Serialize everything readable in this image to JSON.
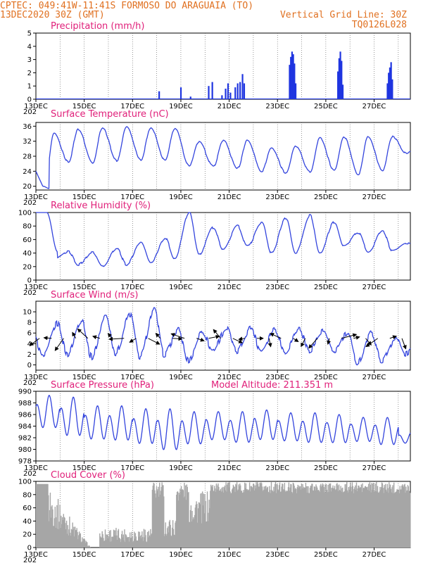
{
  "header": {
    "line1": "CPTEC:   049:41W-11:41S  FORMOSO DO ARAGUAIA (TO)",
    "date": "13DEC2020 30Z (GMT)",
    "grid_note": "Vertical Grid Line: 30Z",
    "code": "TQ0126L028"
  },
  "x_axis": {
    "labels": [
      "13DEC",
      "15DEC",
      "17DEC",
      "19DEC",
      "21DEC",
      "23DEC",
      "25DEC",
      "27DEC"
    ],
    "label_days": [
      0,
      2,
      4,
      6,
      8,
      10,
      12,
      14
    ],
    "range_days": [
      0,
      15.5
    ],
    "year_stub": "202"
  },
  "colors": {
    "line": "#3344dd",
    "bar": "#1f35e0",
    "cloud": "#a6a6a6",
    "header": "#e07020",
    "title": "#e0207a"
  },
  "chart_data": [
    {
      "type": "bar",
      "title": "Precipitation (mm/h)",
      "ylim": [
        0,
        5
      ],
      "yticks": [
        0,
        1,
        2,
        3,
        4,
        5
      ],
      "events": [
        {
          "t": 5.1,
          "v": 0.6
        },
        {
          "t": 6.0,
          "v": 0.9
        },
        {
          "t": 6.4,
          "v": 0.2
        },
        {
          "t": 7.15,
          "v": 1.0
        },
        {
          "t": 7.3,
          "v": 1.3
        },
        {
          "t": 7.7,
          "v": 0.3
        },
        {
          "t": 7.85,
          "v": 0.8
        },
        {
          "t": 7.95,
          "v": 1.2
        },
        {
          "t": 8.05,
          "v": 0.5
        },
        {
          "t": 8.25,
          "v": 0.9
        },
        {
          "t": 8.35,
          "v": 1.2
        },
        {
          "t": 8.45,
          "v": 1.3
        },
        {
          "t": 8.55,
          "v": 1.9
        },
        {
          "t": 8.62,
          "v": 1.2
        },
        {
          "t": 10.5,
          "v": 2.6
        },
        {
          "t": 10.55,
          "v": 3.2
        },
        {
          "t": 10.6,
          "v": 3.6
        },
        {
          "t": 10.65,
          "v": 3.4
        },
        {
          "t": 10.7,
          "v": 2.7
        },
        {
          "t": 10.75,
          "v": 1.2
        },
        {
          "t": 12.5,
          "v": 2.1
        },
        {
          "t": 12.55,
          "v": 3.1
        },
        {
          "t": 12.6,
          "v": 3.6
        },
        {
          "t": 12.65,
          "v": 2.9
        },
        {
          "t": 12.7,
          "v": 1.1
        },
        {
          "t": 14.55,
          "v": 1.2
        },
        {
          "t": 14.6,
          "v": 2.0
        },
        {
          "t": 14.65,
          "v": 2.4
        },
        {
          "t": 14.7,
          "v": 2.8
        },
        {
          "t": 14.75,
          "v": 1.5
        }
      ]
    },
    {
      "type": "line",
      "title": "Surface Temperature (nC)",
      "ylim": [
        19,
        37
      ],
      "yticks": [
        20,
        24,
        28,
        32,
        36
      ],
      "daily_max": [
        34,
        35.2,
        35.6,
        35.8,
        35.6,
        35.4,
        31.8,
        32.2,
        32.3,
        30.2,
        30.6,
        32.9,
        33.2,
        33.3,
        33.2,
        30.2
      ],
      "daily_min": [
        19.4,
        26.5,
        26.3,
        26.8,
        27.1,
        26.9,
        25.5,
        25.3,
        24.8,
        24.0,
        23.6,
        23.8,
        24.3,
        23.2,
        24.2,
        28.8
      ]
    },
    {
      "type": "line",
      "title": "Relative Humidity (%)",
      "ylim": [
        0,
        100
      ],
      "yticks": [
        0,
        20,
        40,
        60,
        80,
        100
      ],
      "daily_min": [
        30,
        23,
        21,
        23,
        26,
        32,
        38,
        45,
        50,
        40,
        40,
        40,
        50,
        42,
        44,
        50
      ],
      "daily_max": [
        100,
        42,
        41,
        47,
        56,
        62,
        100,
        78,
        80,
        85,
        92,
        96,
        86,
        70,
        73,
        55
      ]
    },
    {
      "type": "line",
      "title": "Surface Wind (m/s)",
      "ylim": [
        -1,
        12
      ],
      "yticks": [
        0,
        2,
        4,
        6,
        8,
        10
      ],
      "daily_min": [
        1.5,
        2.0,
        1.5,
        2.3,
        1.5,
        2.0,
        0.8,
        2.8,
        2.5,
        2.8,
        2.5,
        2.8,
        2.5,
        0.5,
        0.8,
        2.0
      ],
      "daily_max": [
        5.5,
        7.8,
        8.5,
        9.2,
        9.5,
        10.3,
        6.5,
        6.3,
        6.8,
        7.0,
        6.8,
        6.8,
        6.3,
        5.8,
        6.0,
        5.0
      ]
    },
    {
      "type": "line",
      "title": "Surface Pressure (hPa)",
      "subtitle": "Model Altitude: 211.351  m",
      "ylim": [
        978,
        990
      ],
      "yticks": [
        978,
        980,
        982,
        984,
        986,
        988,
        990
      ],
      "daily_high": [
        989.3,
        989,
        987.5,
        987.5,
        987,
        987,
        986.5,
        986.5,
        986.5,
        986.8,
        986.3,
        986.3,
        986,
        985.5,
        985.5,
        983
      ],
      "daily_low": [
        983,
        981.5,
        981,
        980.8,
        980.2,
        979,
        980.2,
        981,
        980.5,
        981,
        980.8,
        980.5,
        980.5,
        980.8,
        980.2,
        980.8
      ]
    },
    {
      "type": "area",
      "title": "Cloud Cover (%)",
      "ylim": [
        0,
        100
      ],
      "yticks": [
        0,
        20,
        40,
        60,
        80,
        100
      ]
    }
  ]
}
